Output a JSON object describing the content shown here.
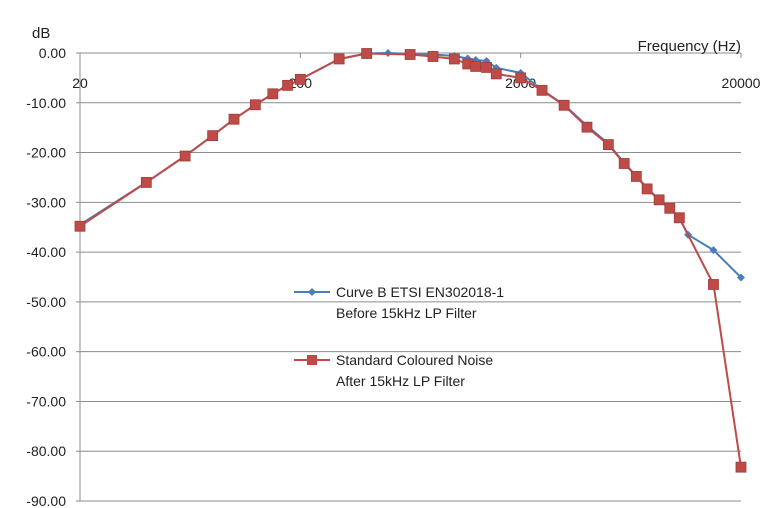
{
  "chart_data": {
    "type": "line",
    "ylabel": "dB",
    "xlabel": "Frequency (Hz)",
    "x_scale": "log",
    "xlim": [
      20,
      20000
    ],
    "ylim": [
      -90,
      0
    ],
    "x_ticks": [
      "20",
      "200",
      "2000",
      "20000"
    ],
    "y_ticks": [
      "0.00",
      "-10.00",
      "-20.00",
      "-30.00",
      "-40.00",
      "-50.00",
      "-60.00",
      "-70.00",
      "-80.00",
      "-90.00"
    ],
    "grid": true,
    "legend_position": "center-right",
    "series": [
      {
        "name": "Curve B ETSI EN302018-1 Before 15kHz LP Filter",
        "name_lines": [
          "Curve B ETSI EN302018-1",
          "Before 15kHz LP Filter"
        ],
        "color": "#4a7ebb",
        "marker": "diamond",
        "x": [
          20,
          40,
          60,
          80,
          100,
          125,
          150,
          175,
          200,
          300,
          400,
          500,
          630,
          800,
          1000,
          1150,
          1250,
          1400,
          1550,
          2000,
          2500,
          3150,
          4000,
          5000,
          5900,
          6700,
          7500,
          8500,
          9500,
          10500,
          11500,
          15000,
          20000
        ],
        "y": [
          -34.5,
          -26.0,
          -20.7,
          -16.6,
          -13.3,
          -10.4,
          -8.2,
          -6.5,
          -5.3,
          -1.2,
          -0.1,
          0.0,
          -0.2,
          -0.3,
          -0.6,
          -1.1,
          -1.4,
          -1.6,
          -3.0,
          -4.0,
          -7.4,
          -10.4,
          -14.6,
          -18.2,
          -22.1,
          -24.7,
          -27.1,
          -29.5,
          -31.1,
          -33.1,
          -36.5,
          -39.6,
          -45.1
        ]
      },
      {
        "name": "Standard Coloured Noise After 15kHz LP Filter",
        "name_lines": [
          "Standard Coloured Noise",
          "After 15kHz LP Filter"
        ],
        "color": "#be4b48",
        "marker": "square",
        "x": [
          20,
          40,
          60,
          80,
          100,
          125,
          150,
          175,
          200,
          300,
          400,
          630,
          800,
          1000,
          1150,
          1250,
          1400,
          1550,
          2000,
          2500,
          3150,
          4000,
          5000,
          5900,
          6700,
          7500,
          8500,
          9500,
          10500,
          15000,
          20000
        ],
        "y": [
          -34.8,
          -26.0,
          -20.7,
          -16.6,
          -13.3,
          -10.4,
          -8.2,
          -6.5,
          -5.3,
          -1.2,
          -0.1,
          -0.3,
          -0.7,
          -1.2,
          -2.2,
          -2.7,
          -2.9,
          -4.2,
          -5.0,
          -7.5,
          -10.5,
          -14.9,
          -18.4,
          -22.2,
          -24.8,
          -27.3,
          -29.5,
          -31.2,
          -33.1,
          -46.5,
          -83.2
        ]
      }
    ]
  }
}
